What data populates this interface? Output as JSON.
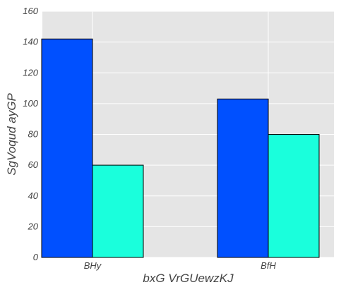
{
  "chart_data": {
    "type": "bar",
    "title": "",
    "xlabel": "bxG VrGUewzKJ",
    "ylabel": "SgVoqud ayGP",
    "categories": [
      "BHy",
      "BfH"
    ],
    "series": [
      {
        "values": [
          142,
          103
        ],
        "color": "#0050ff"
      },
      {
        "values": [
          60,
          80
        ],
        "color": "#1affdc"
      }
    ],
    "ylim": [
      0,
      160
    ],
    "yticks": [
      0,
      20,
      40,
      60,
      80,
      100,
      120,
      140,
      160
    ],
    "grid": true,
    "background": "#e5e5e5",
    "gridColor": "#ffffff"
  }
}
